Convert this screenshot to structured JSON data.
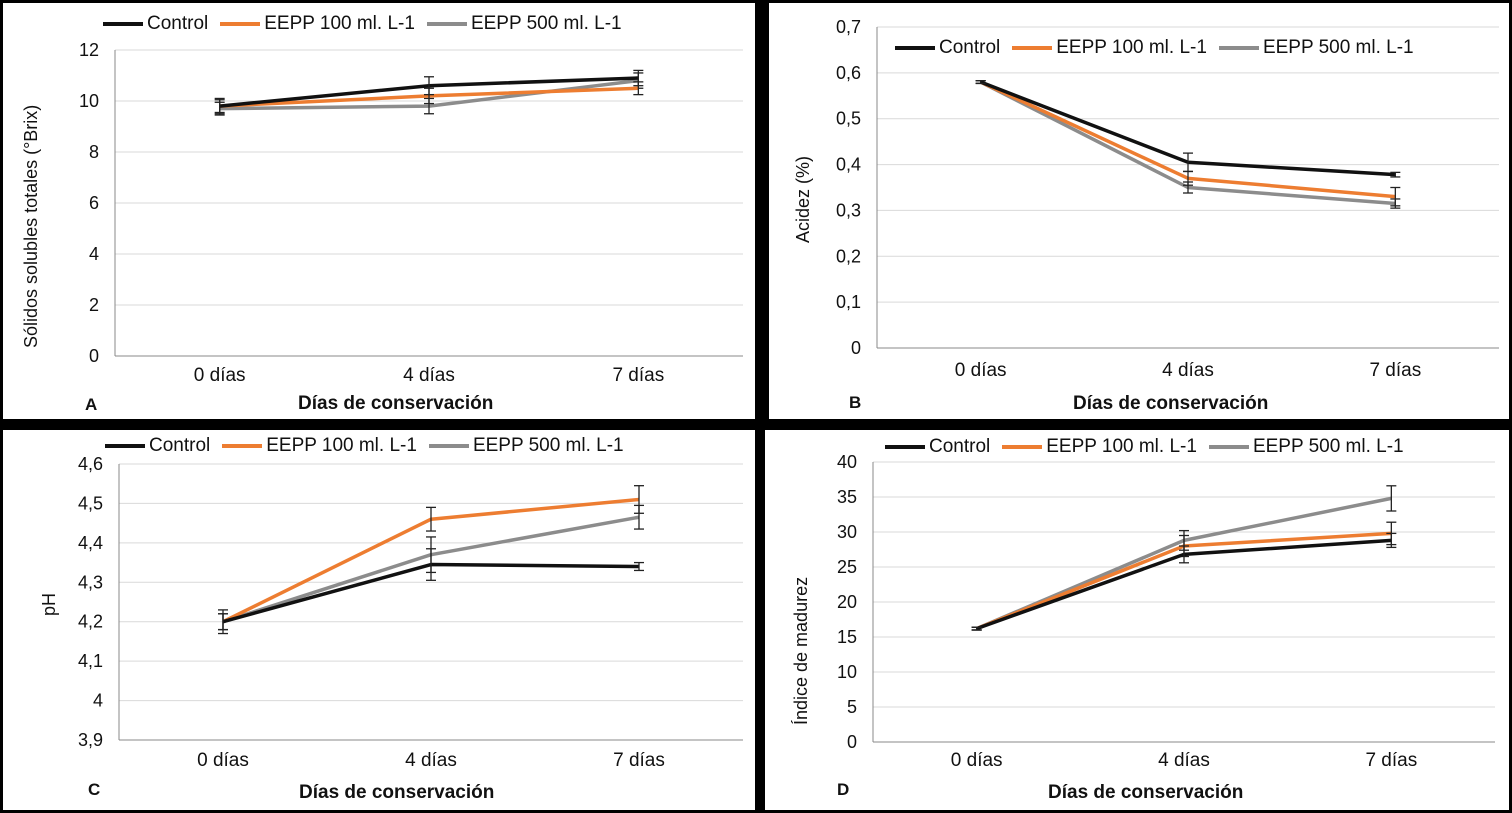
{
  "colors": {
    "control": "#111111",
    "eepp100": "#ed7d31",
    "eepp500": "#8c8c8c"
  },
  "chart_data": [
    {
      "type": "line",
      "panel_label": "A",
      "ylabel": "Sólidos solubles totales (°Brix)",
      "xlabel": "Días de conservación",
      "categories": [
        "0 días",
        "4 días",
        "7 días"
      ],
      "ylim": [
        0,
        12
      ],
      "yticks": [
        "0",
        "2",
        "4",
        "6",
        "8",
        "10",
        "12"
      ],
      "grid": true,
      "legend_position": "top",
      "series": [
        {
          "name": "Control",
          "values": [
            9.8,
            10.6,
            10.9
          ],
          "errors": [
            0.3,
            0.35,
            0.3
          ]
        },
        {
          "name": "EEPP 100 ml. L-1",
          "values": [
            9.8,
            10.2,
            10.5
          ],
          "errors": [
            0.25,
            0.3,
            0.25
          ]
        },
        {
          "name": "EEPP 500 ml. L-1",
          "values": [
            9.7,
            9.8,
            10.8
          ],
          "errors": [
            0.25,
            0.3,
            0.3
          ]
        }
      ]
    },
    {
      "type": "line",
      "panel_label": "B",
      "ylabel": "Acidez (%)",
      "xlabel": "Días de conservación",
      "categories": [
        "0 días",
        "4 días",
        "7 días"
      ],
      "ylim": [
        0,
        0.7
      ],
      "yticks": [
        "0",
        "0,1",
        "0,2",
        "0,3",
        "0,4",
        "0,5",
        "0,6",
        "0,7"
      ],
      "grid": true,
      "legend_position": "top",
      "series": [
        {
          "name": "Control",
          "values": [
            0.58,
            0.405,
            0.378
          ],
          "errors": [
            0.003,
            0.02,
            0.005
          ]
        },
        {
          "name": "EEPP 100 ml. L-1",
          "values": [
            0.58,
            0.37,
            0.33
          ],
          "errors": [
            0.003,
            0.015,
            0.02
          ]
        },
        {
          "name": "EEPP 500 ml. L-1",
          "values": [
            0.58,
            0.35,
            0.315
          ],
          "errors": [
            0.003,
            0.012,
            0.01
          ]
        }
      ]
    },
    {
      "type": "line",
      "panel_label": "C",
      "ylabel": "pH",
      "xlabel": "Días de conservación",
      "categories": [
        "0 días",
        "4 días",
        "7 días"
      ],
      "ylim": [
        3.9,
        4.6
      ],
      "yticks": [
        "3,9",
        "4",
        "4,1",
        "4,2",
        "4,3",
        "4,4",
        "4,5",
        "4,6"
      ],
      "grid": true,
      "legend_position": "top",
      "series": [
        {
          "name": "Control",
          "values": [
            4.2,
            4.345,
            4.34
          ],
          "errors": [
            0.03,
            0.04,
            0.01
          ]
        },
        {
          "name": "EEPP 100 ml. L-1",
          "values": [
            4.2,
            4.46,
            4.51
          ],
          "errors": [
            0.02,
            0.03,
            0.035
          ]
        },
        {
          "name": "EEPP 500 ml. L-1",
          "values": [
            4.2,
            4.37,
            4.465
          ],
          "errors": [
            0.02,
            0.045,
            0.03
          ]
        }
      ]
    },
    {
      "type": "line",
      "panel_label": "D",
      "ylabel": "Índice de madurez",
      "xlabel": "Días de conservación",
      "categories": [
        "0 días",
        "4 días",
        "7 días"
      ],
      "ylim": [
        0,
        40
      ],
      "yticks": [
        "0",
        "5",
        "10",
        "15",
        "20",
        "25",
        "30",
        "35",
        "40"
      ],
      "grid": true,
      "legend_position": "top",
      "series": [
        {
          "name": "Control",
          "values": [
            16.2,
            26.8,
            28.8
          ],
          "errors": [
            0.2,
            1.2,
            1.0
          ]
        },
        {
          "name": "EEPP 100 ml. L-1",
          "values": [
            16.2,
            28.0,
            29.8
          ],
          "errors": [
            0.2,
            1.5,
            1.6
          ]
        },
        {
          "name": "EEPP 500 ml. L-1",
          "values": [
            16.2,
            28.8,
            34.8
          ],
          "errors": [
            0.2,
            1.4,
            1.8
          ]
        }
      ]
    }
  ]
}
